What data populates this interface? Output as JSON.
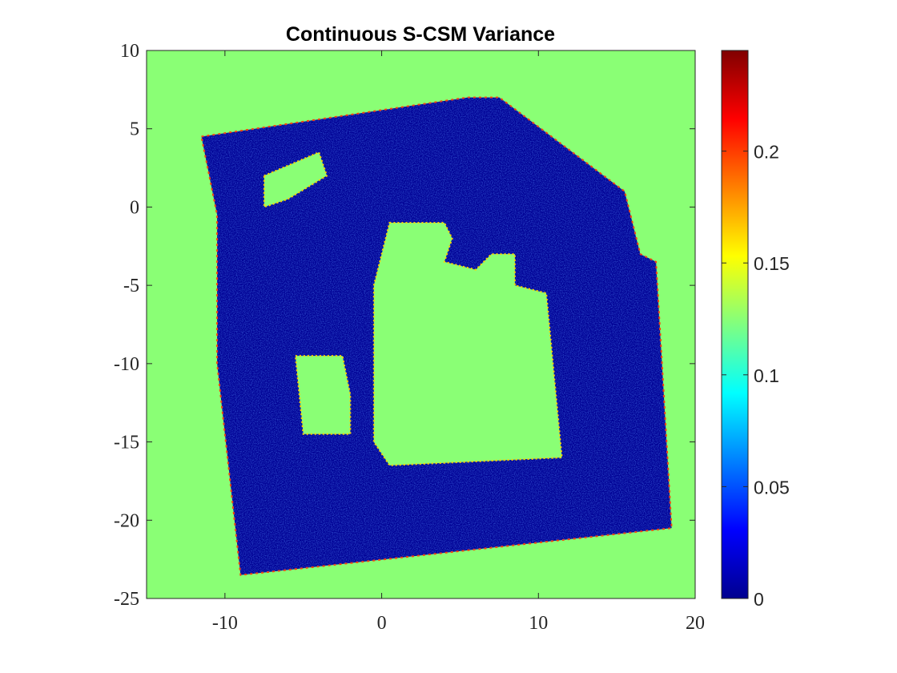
{
  "chart_data": {
    "type": "heatmap",
    "title": "Continuous S-CSM Variance",
    "xlabel": "",
    "ylabel": "",
    "xlim": [
      -15,
      20
    ],
    "ylim": [
      -25,
      10
    ],
    "x_ticks": [
      "-10",
      "0",
      "10",
      "20"
    ],
    "x_tick_values": [
      -10,
      0,
      10,
      20
    ],
    "y_ticks": [
      "10",
      "5",
      "0",
      "-5",
      "-10",
      "-15",
      "-20",
      "-25"
    ],
    "y_tick_values": [
      10,
      5,
      0,
      -5,
      -10,
      -15,
      -20,
      -25
    ],
    "colormap": "jet",
    "background_value": 0.125,
    "colorbar": {
      "limits": [
        0,
        0.245
      ],
      "ticks": [
        "0",
        "0.05",
        "0.1",
        "0.15",
        "0.2"
      ],
      "tick_values": [
        0,
        0.05,
        0.1,
        0.15,
        0.2
      ]
    },
    "region_outline": [
      [
        -11.5,
        4.5
      ],
      [
        5.5,
        7.0
      ],
      [
        7.5,
        7.0
      ],
      [
        15.5,
        1.0
      ],
      [
        16.5,
        -3.0
      ],
      [
        17.5,
        -3.5
      ],
      [
        18.5,
        -20.5
      ],
      [
        -9.0,
        -23.5
      ],
      [
        -10.5,
        -10.0
      ],
      [
        -10.5,
        -0.5
      ]
    ],
    "low_variance_value": 0.005,
    "free_space_regions": [
      {
        "value": 0.125,
        "polygon": [
          [
            0.5,
            -1.0
          ],
          [
            4.0,
            -1.0
          ],
          [
            4.5,
            -2.0
          ],
          [
            4.0,
            -3.5
          ],
          [
            6.0,
            -4.0
          ],
          [
            7.0,
            -3.0
          ],
          [
            8.5,
            -3.0
          ],
          [
            8.5,
            -5.0
          ],
          [
            10.5,
            -5.5
          ],
          [
            11.5,
            -16.0
          ],
          [
            0.5,
            -16.5
          ],
          [
            -0.5,
            -15.0
          ],
          [
            -0.5,
            -5.0
          ]
        ]
      },
      {
        "value": 0.125,
        "polygon": [
          [
            -5.5,
            -9.5
          ],
          [
            -2.5,
            -9.5
          ],
          [
            -2.0,
            -12.0
          ],
          [
            -2.0,
            -14.5
          ],
          [
            -5.0,
            -14.5
          ]
        ]
      },
      {
        "value": 0.125,
        "polygon": [
          [
            -7.5,
            2.0
          ],
          [
            -4.0,
            3.5
          ],
          [
            -3.5,
            2.0
          ],
          [
            -6.0,
            0.5
          ],
          [
            -7.5,
            0.0
          ]
        ]
      }
    ]
  }
}
